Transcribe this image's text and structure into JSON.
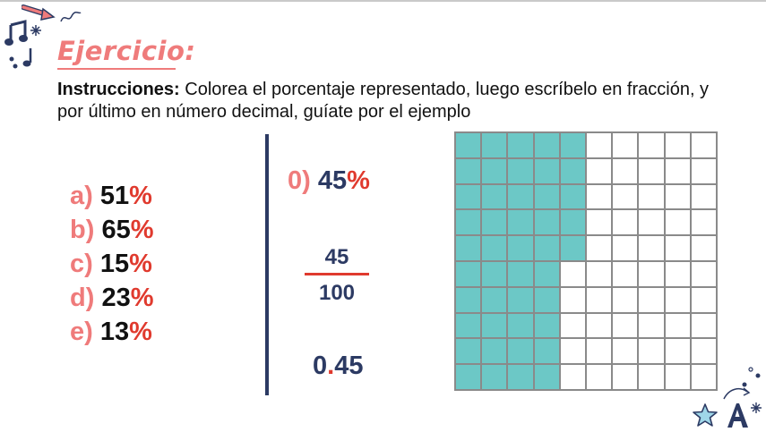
{
  "title": "Ejercicio:",
  "instructions": {
    "label": "Instrucciones:",
    "text": " Colorea el porcentaje representado, luego escríbelo en fracción, y por último en número decimal, guíate por el ejemplo"
  },
  "items": [
    {
      "letter": "a)",
      "value": "51",
      "pct": "%"
    },
    {
      "letter": "b)",
      "value": "65",
      "pct": "%"
    },
    {
      "letter": "c)",
      "value": "15",
      "pct": "%"
    },
    {
      "letter": "d)",
      "value": "23",
      "pct": "%"
    },
    {
      "letter": "e)",
      "value": "13",
      "pct": "%"
    }
  ],
  "example": {
    "letter": "0)",
    "value": "45",
    "pct": "%",
    "numerator": "45",
    "denominator": "100",
    "decimal_int": "0",
    "decimal_dot": ".",
    "decimal_frac": "45",
    "grid_filled": 45
  },
  "colors": {
    "accent": "#ef7b7b",
    "percent": "#e03a2e",
    "navy": "#2c3a63",
    "fill": "#6cc8c6"
  },
  "icons": [
    "music-note-icon",
    "arrow-icon",
    "star-icon",
    "letter-a-icon",
    "sparkle-icon"
  ]
}
